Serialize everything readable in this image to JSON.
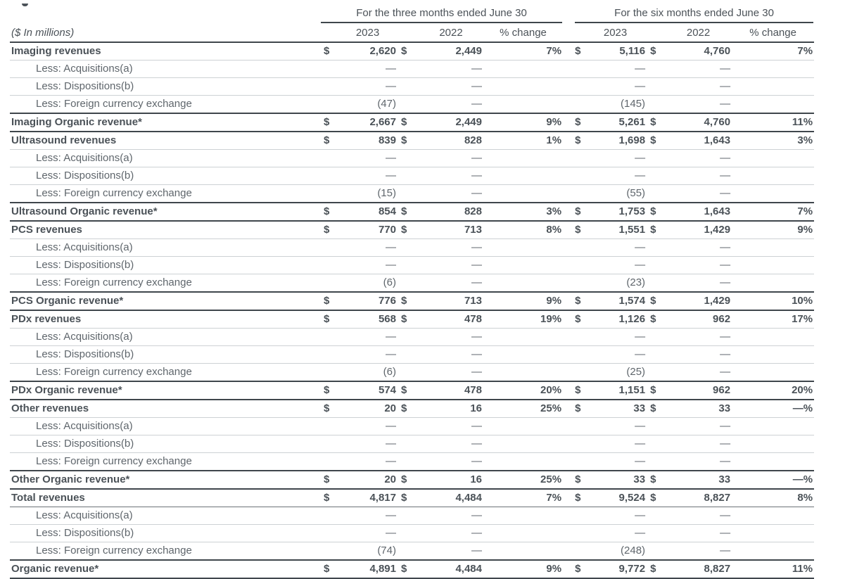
{
  "page": {
    "unit_label": "($ In millions)",
    "currency": "$"
  },
  "theme": {
    "text": "#4b5258",
    "text-less": "#5f666c",
    "border-dark": "#3f464c",
    "border-light": "#cdd1d4",
    "border-mid": "#6b7278",
    "bg": "#ffffff"
  },
  "groups": [
    {
      "title": "For the three months ended June 30"
    },
    {
      "title": "For the six months ended June 30"
    }
  ],
  "columns": [
    "2023",
    "2022",
    "% change",
    "2023",
    "2022",
    "% change"
  ],
  "rows": [
    {
      "label": "Imaging revenues",
      "type": "revenue",
      "v": [
        "2,620",
        "2,449",
        "7%",
        "5,116",
        "4,760",
        "7%"
      ]
    },
    {
      "label": "Less: Acquisitions(a)",
      "type": "less",
      "v": [
        "—",
        "—",
        "",
        "—",
        "—",
        ""
      ]
    },
    {
      "label": "Less: Dispositions(b)",
      "type": "less",
      "v": [
        "—",
        "—",
        "",
        "—",
        "—",
        ""
      ]
    },
    {
      "label": "Less: Foreign currency exchange",
      "type": "less",
      "v": [
        "(47)",
        "—",
        "",
        "(145)",
        "—",
        ""
      ]
    },
    {
      "label": "Imaging Organic revenue*",
      "type": "organic",
      "v": [
        "2,667",
        "2,449",
        "9%",
        "5,261",
        "4,760",
        "11%"
      ]
    },
    {
      "label": "Ultrasound revenues",
      "type": "revenue",
      "v": [
        "839",
        "828",
        "1%",
        "1,698",
        "1,643",
        "3%"
      ]
    },
    {
      "label": "Less: Acquisitions(a)",
      "type": "less",
      "v": [
        "—",
        "—",
        "",
        "—",
        "—",
        ""
      ]
    },
    {
      "label": "Less: Dispositions(b)",
      "type": "less",
      "v": [
        "—",
        "—",
        "",
        "—",
        "—",
        ""
      ]
    },
    {
      "label": "Less: Foreign currency exchange",
      "type": "less",
      "v": [
        "(15)",
        "—",
        "",
        "(55)",
        "—",
        ""
      ]
    },
    {
      "label": "Ultrasound Organic revenue*",
      "type": "organic",
      "v": [
        "854",
        "828",
        "3%",
        "1,753",
        "1,643",
        "7%"
      ]
    },
    {
      "label": "PCS revenues",
      "type": "revenue",
      "v": [
        "770",
        "713",
        "8%",
        "1,551",
        "1,429",
        "9%"
      ]
    },
    {
      "label": "Less: Acquisitions(a)",
      "type": "less",
      "v": [
        "—",
        "—",
        "",
        "—",
        "—",
        ""
      ]
    },
    {
      "label": "Less: Dispositions(b)",
      "type": "less",
      "v": [
        "—",
        "—",
        "",
        "—",
        "—",
        ""
      ]
    },
    {
      "label": "Less: Foreign currency exchange",
      "type": "less",
      "v": [
        "(6)",
        "—",
        "",
        "(23)",
        "—",
        ""
      ]
    },
    {
      "label": "PCS Organic revenue*",
      "type": "organic",
      "v": [
        "776",
        "713",
        "9%",
        "1,574",
        "1,429",
        "10%"
      ]
    },
    {
      "label": "PDx revenues",
      "type": "revenue",
      "v": [
        "568",
        "478",
        "19%",
        "1,126",
        "962",
        "17%"
      ]
    },
    {
      "label": "Less: Acquisitions(a)",
      "type": "less",
      "v": [
        "—",
        "—",
        "",
        "—",
        "—",
        ""
      ]
    },
    {
      "label": "Less: Dispositions(b)",
      "type": "less",
      "v": [
        "—",
        "—",
        "",
        "—",
        "—",
        ""
      ]
    },
    {
      "label": "Less: Foreign currency exchange",
      "type": "less",
      "v": [
        "(6)",
        "—",
        "",
        "(25)",
        "—",
        ""
      ]
    },
    {
      "label": "PDx Organic revenue*",
      "type": "organic",
      "v": [
        "574",
        "478",
        "20%",
        "1,151",
        "962",
        "20%"
      ]
    },
    {
      "label": "Other revenues",
      "type": "revenue",
      "v": [
        "20",
        "16",
        "25%",
        "33",
        "33",
        "—%"
      ]
    },
    {
      "label": "Less: Acquisitions(a)",
      "type": "less",
      "v": [
        "—",
        "—",
        "",
        "—",
        "—",
        ""
      ]
    },
    {
      "label": "Less: Dispositions(b)",
      "type": "less",
      "v": [
        "—",
        "—",
        "",
        "—",
        "—",
        ""
      ]
    },
    {
      "label": "Less: Foreign currency exchange",
      "type": "less",
      "v": [
        "—",
        "—",
        "",
        "—",
        "—",
        ""
      ]
    },
    {
      "label": "Other Organic revenue*",
      "type": "organic",
      "v": [
        "20",
        "16",
        "25%",
        "33",
        "33",
        "—%"
      ]
    },
    {
      "label": "Total revenues",
      "type": "revenue",
      "divider": true,
      "v": [
        "4,817",
        "4,484",
        "7%",
        "9,524",
        "8,827",
        "8%"
      ]
    },
    {
      "label": "Less: Acquisitions(a)",
      "type": "less",
      "v": [
        "—",
        "—",
        "",
        "—",
        "—",
        ""
      ]
    },
    {
      "label": "Less: Dispositions(b)",
      "type": "less",
      "v": [
        "—",
        "—",
        "",
        "—",
        "—",
        ""
      ]
    },
    {
      "label": "Less: Foreign currency exchange",
      "type": "less",
      "v": [
        "(74)",
        "—",
        "",
        "(248)",
        "—",
        ""
      ]
    },
    {
      "label": "Organic revenue*",
      "type": "organic",
      "v": [
        "4,891",
        "4,484",
        "9%",
        "9,772",
        "8,827",
        "11%"
      ]
    }
  ]
}
